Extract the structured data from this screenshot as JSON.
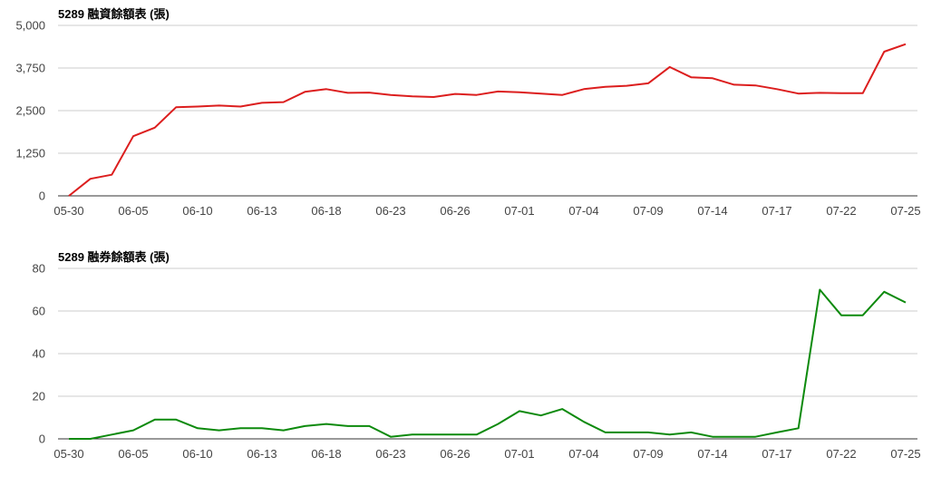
{
  "chart_data": [
    {
      "type": "line",
      "title": "5289 融資餘額表 (張)",
      "xlabel": "",
      "ylabel": "",
      "ylim": [
        0,
        5000
      ],
      "yticks": [
        "0",
        "1,250",
        "2,500",
        "3,750",
        "5,000"
      ],
      "ytick_values": [
        0,
        1250,
        2500,
        3750,
        5000
      ],
      "x_tick_labels": [
        "05-30",
        "06-05",
        "06-10",
        "06-13",
        "06-18",
        "06-23",
        "06-26",
        "07-01",
        "07-04",
        "07-09",
        "07-14",
        "07-17",
        "07-22",
        "07-25"
      ],
      "x_tick_indices": [
        0,
        3,
        6,
        9,
        12,
        15,
        18,
        21,
        24,
        27,
        30,
        33,
        36,
        39
      ],
      "grid": true,
      "colors": {
        "line": "#dc1e1e"
      },
      "series": [
        {
          "values": [
            0,
            500,
            620,
            1750,
            2000,
            2600,
            2620,
            2650,
            2620,
            2730,
            2750,
            3050,
            3130,
            3020,
            3030,
            2960,
            2920,
            2900,
            2990,
            2960,
            3060,
            3040,
            3000,
            2960,
            3130,
            3200,
            3230,
            3300,
            3780,
            3480,
            3450,
            3260,
            3240,
            3130,
            3000,
            3020,
            3010,
            3010,
            4230,
            4450
          ]
        }
      ]
    },
    {
      "type": "line",
      "title": "5289 融券餘額表 (張)",
      "xlabel": "",
      "ylabel": "",
      "ylim": [
        0,
        80
      ],
      "yticks": [
        "0",
        "20",
        "40",
        "60",
        "80"
      ],
      "ytick_values": [
        0,
        20,
        40,
        60,
        80
      ],
      "x_tick_labels": [
        "05-30",
        "06-05",
        "06-10",
        "06-13",
        "06-18",
        "06-23",
        "06-26",
        "07-01",
        "07-04",
        "07-09",
        "07-14",
        "07-17",
        "07-22",
        "07-25"
      ],
      "x_tick_indices": [
        0,
        3,
        6,
        9,
        12,
        15,
        18,
        21,
        24,
        27,
        30,
        33,
        36,
        39
      ],
      "grid": true,
      "colors": {
        "line": "#0d8a0d"
      },
      "series": [
        {
          "values": [
            0,
            0,
            2,
            4,
            9,
            9,
            5,
            4,
            5,
            5,
            4,
            6,
            7,
            6,
            6,
            1,
            2,
            2,
            2,
            2,
            7,
            13,
            11,
            14,
            8,
            3,
            3,
            3,
            2,
            3,
            1,
            1,
            1,
            3,
            5,
            70,
            58,
            58,
            69,
            64
          ]
        }
      ]
    }
  ]
}
